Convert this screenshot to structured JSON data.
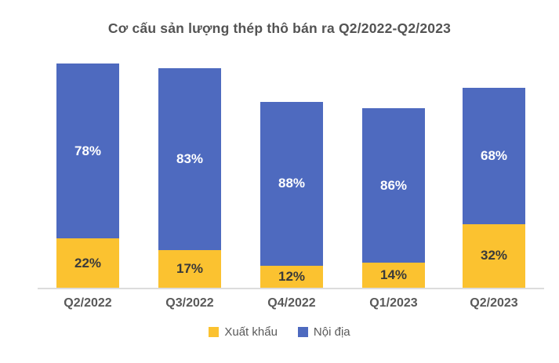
{
  "chart_data": {
    "type": "bar",
    "stacked": true,
    "title": "Cơ cấu sản lượng thép thô bán ra Q2/2022-Q2/2023",
    "categories": [
      "Q2/2022",
      "Q3/2022",
      "Q4/2022",
      "Q1/2023",
      "Q2/2023"
    ],
    "series": [
      {
        "name": "Xuất khẩu",
        "values": [
          22,
          17,
          12,
          14,
          32
        ],
        "color": "#FBC230",
        "label_color": "#3A3A3A"
      },
      {
        "name": "Nội địa",
        "values": [
          78,
          83,
          88,
          86,
          68
        ],
        "color": "#4E6ABF",
        "label_color": "#FFFFFF"
      }
    ],
    "value_suffix": "%",
    "relative_bar_totals": [
      100,
      98,
      83,
      80,
      89
    ],
    "legend_position": "bottom",
    "grid": false,
    "y_axis_visible": false
  },
  "colors": {
    "background": "#FFFFFF",
    "title_text": "#535353",
    "axis_label_text": "#595959",
    "axis_line": "#DCDCDC"
  }
}
